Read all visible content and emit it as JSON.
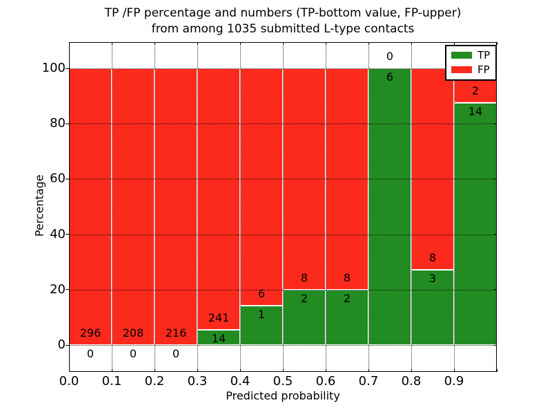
{
  "chart_data": {
    "type": "bar",
    "variant": "stacked-percentage",
    "title_line1": "TP /FP percentage and numbers (TP-bottom value, FP-upper)",
    "title_line2": "from among 1035 submitted L-type contacts",
    "xlabel": "Predicted probability",
    "ylabel": "Percentage",
    "total_contacts": 1035,
    "categories": [
      "0.0-0.1",
      "0.1-0.2",
      "0.2-0.3",
      "0.3-0.4",
      "0.4-0.5",
      "0.5-0.6",
      "0.6-0.7",
      "0.7-0.8",
      "0.8-0.9",
      "0.9-1.0"
    ],
    "x_tick_labels": [
      "0.0",
      "0.1",
      "0.2",
      "0.3",
      "0.4",
      "0.5",
      "0.6",
      "0.7",
      "0.8",
      "0.9"
    ],
    "y_tick_labels": [
      "0",
      "20",
      "40",
      "60",
      "80",
      "100"
    ],
    "y_tick_values": [
      0,
      20,
      40,
      60,
      80,
      100
    ],
    "xlim": [
      0.0,
      1.0
    ],
    "ylim": [
      -9.7,
      109.5
    ],
    "bin_width": 0.1,
    "series": [
      {
        "name": "TP",
        "color": "#228b22",
        "counts": [
          0,
          0,
          0,
          14,
          1,
          2,
          2,
          6,
          3,
          14
        ],
        "pct": [
          0,
          0,
          0,
          5.49,
          14.29,
          20,
          20,
          100,
          27.27,
          87.5
        ]
      },
      {
        "name": "FP",
        "color": "#fb2a1d",
        "counts": [
          296,
          208,
          216,
          241,
          6,
          8,
          8,
          0,
          8,
          2
        ],
        "pct": [
          100,
          100,
          100,
          94.51,
          85.71,
          80,
          80,
          0,
          72.73,
          12.5
        ]
      }
    ],
    "legend": {
      "position": "upper right",
      "items": [
        "TP",
        "FP"
      ]
    },
    "grid": {
      "style": "dotted",
      "color": "#000000",
      "over_bars": true
    },
    "bar_edge_color": "#ffffff",
    "text_color": "#000000",
    "background": "#ffffff"
  }
}
